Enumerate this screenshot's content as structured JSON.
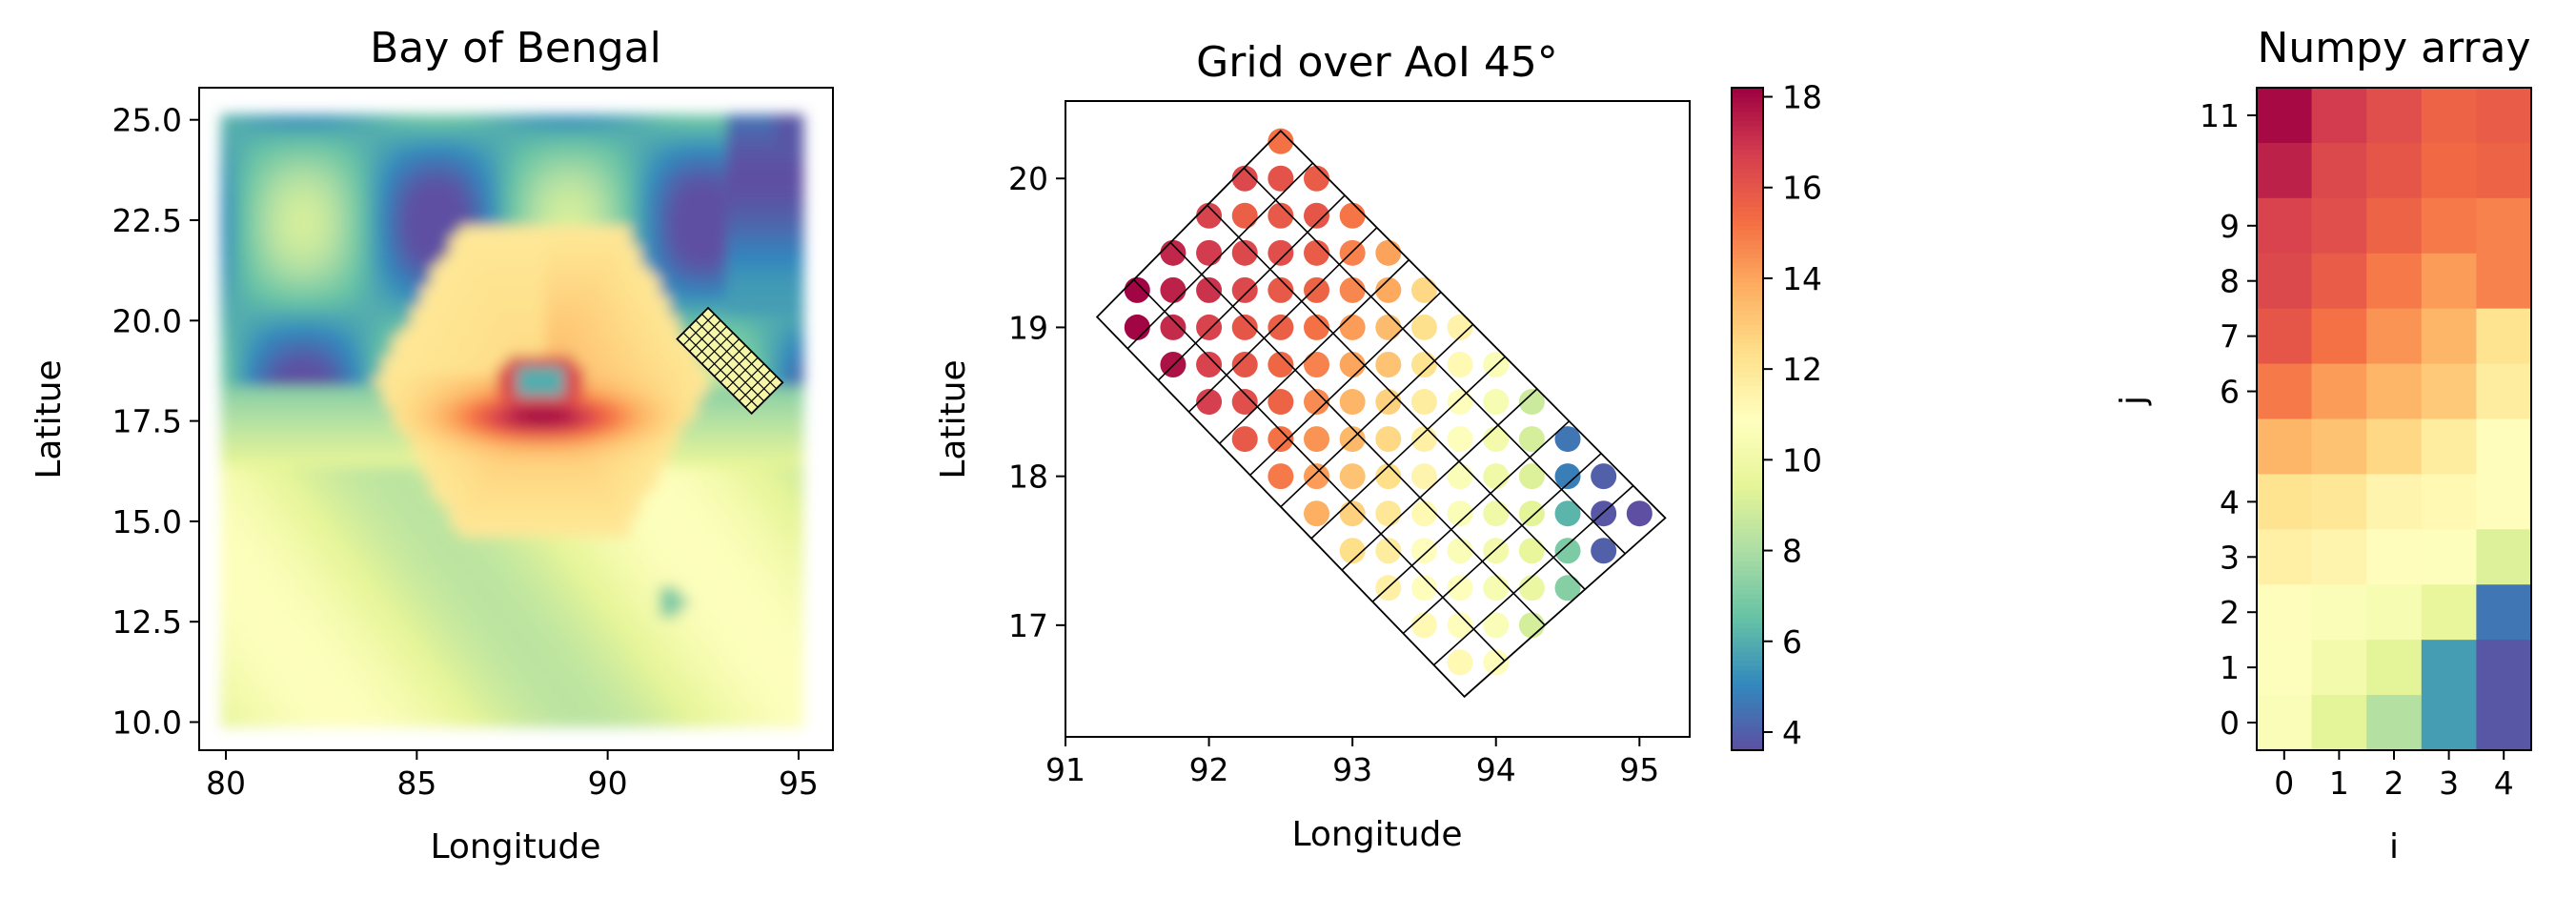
{
  "chart_data": [
    {
      "panel": "left",
      "type": "scatter",
      "title": "Bay of Bengal",
      "xlabel": "Longitude",
      "ylabel": "Latitue",
      "xlim": [
        79.3,
        95.9
      ],
      "ylim": [
        9.3,
        25.8
      ],
      "xticks": [
        "80",
        "85",
        "90",
        "95"
      ],
      "xtick_values": [
        80,
        85,
        90,
        95
      ],
      "yticks": [
        "10.0",
        "12.5",
        "15.0",
        "17.5",
        "20.0",
        "22.5",
        "25.0"
      ],
      "ytick_values": [
        10,
        12.5,
        15,
        17.5,
        20,
        22.5,
        25
      ],
      "field_extent": {
        "lon": [
          80,
          95
        ],
        "lat": [
          10,
          25
        ]
      },
      "field_description_values": {
        "eye_center": [
          88.3,
          18.5
        ],
        "hexagon_radius_deg": 4.4
      },
      "aoi_grid": {
        "center": [
          93.2,
          19.0
        ],
        "angle_deg": 45,
        "nx": 5,
        "ny": 12
      },
      "colormap": "Spectral_r"
    },
    {
      "panel": "middle",
      "type": "scatter",
      "title": "Grid over AoI 45°",
      "xlabel": "Longitude",
      "ylabel": "Latitue",
      "xlim": [
        91.0,
        95.35
      ],
      "ylim": [
        16.25,
        20.52
      ],
      "xticks": [
        "91",
        "92",
        "93",
        "94",
        "95"
      ],
      "xtick_values": [
        91,
        92,
        93,
        94,
        95
      ],
      "yticks": [
        "17",
        "18",
        "19",
        "20"
      ],
      "ytick_values": [
        17,
        18,
        19,
        20
      ],
      "grid_polygon": [
        [
          92.5,
          20.32
        ],
        [
          91.22,
          19.07
        ],
        [
          93.78,
          16.52
        ],
        [
          95.18,
          17.72
        ]
      ],
      "grid_rows": 12,
      "grid_cols": 5,
      "points": [
        {
          "x": 92.5,
          "y": 20.25,
          "v": 15.2
        },
        {
          "x": 92.25,
          "y": 20.0,
          "v": 16.4
        },
        {
          "x": 92.5,
          "y": 20.0,
          "v": 16.1
        },
        {
          "x": 92.75,
          "y": 20.0,
          "v": 15.8
        },
        {
          "x": 92.0,
          "y": 19.75,
          "v": 16.6
        },
        {
          "x": 92.25,
          "y": 19.75,
          "v": 15.7
        },
        {
          "x": 92.5,
          "y": 19.75,
          "v": 15.9
        },
        {
          "x": 92.75,
          "y": 19.75,
          "v": 16.0
        },
        {
          "x": 93.0,
          "y": 19.75,
          "v": 15.1
        },
        {
          "x": 91.75,
          "y": 19.5,
          "v": 17.3
        },
        {
          "x": 92.0,
          "y": 19.5,
          "v": 16.8
        },
        {
          "x": 92.25,
          "y": 19.5,
          "v": 16.4
        },
        {
          "x": 92.5,
          "y": 19.5,
          "v": 16.2
        },
        {
          "x": 92.75,
          "y": 19.5,
          "v": 15.8
        },
        {
          "x": 93.0,
          "y": 19.5,
          "v": 14.8
        },
        {
          "x": 93.25,
          "y": 19.5,
          "v": 14.1
        },
        {
          "x": 91.5,
          "y": 19.25,
          "v": 18.1
        },
        {
          "x": 91.75,
          "y": 19.25,
          "v": 17.4
        },
        {
          "x": 92.0,
          "y": 19.25,
          "v": 17.0
        },
        {
          "x": 92.25,
          "y": 19.25,
          "v": 16.4
        },
        {
          "x": 92.5,
          "y": 19.25,
          "v": 15.9
        },
        {
          "x": 92.75,
          "y": 19.25,
          "v": 15.6
        },
        {
          "x": 93.0,
          "y": 19.25,
          "v": 14.7
        },
        {
          "x": 93.25,
          "y": 19.25,
          "v": 13.9
        },
        {
          "x": 93.5,
          "y": 19.25,
          "v": 12.6
        },
        {
          "x": 91.5,
          "y": 19.0,
          "v": 18.1
        },
        {
          "x": 91.75,
          "y": 19.0,
          "v": 17.2
        },
        {
          "x": 92.0,
          "y": 19.0,
          "v": 16.6
        },
        {
          "x": 92.25,
          "y": 19.0,
          "v": 16.0
        },
        {
          "x": 92.5,
          "y": 19.0,
          "v": 15.7
        },
        {
          "x": 92.75,
          "y": 19.0,
          "v": 15.2
        },
        {
          "x": 93.0,
          "y": 19.0,
          "v": 14.2
        },
        {
          "x": 93.25,
          "y": 19.0,
          "v": 13.4
        },
        {
          "x": 93.5,
          "y": 19.0,
          "v": 12.3
        },
        {
          "x": 93.75,
          "y": 19.0,
          "v": 11.5
        },
        {
          "x": 91.75,
          "y": 18.75,
          "v": 17.8
        },
        {
          "x": 92.0,
          "y": 18.75,
          "v": 16.6
        },
        {
          "x": 92.25,
          "y": 18.75,
          "v": 16.0
        },
        {
          "x": 92.5,
          "y": 18.75,
          "v": 15.5
        },
        {
          "x": 92.75,
          "y": 18.75,
          "v": 14.8
        },
        {
          "x": 93.0,
          "y": 18.75,
          "v": 14.0
        },
        {
          "x": 93.25,
          "y": 18.75,
          "v": 13.2
        },
        {
          "x": 93.5,
          "y": 18.75,
          "v": 12.2
        },
        {
          "x": 93.75,
          "y": 18.75,
          "v": 11.2
        },
        {
          "x": 94.0,
          "y": 18.75,
          "v": 10.6
        },
        {
          "x": 92.0,
          "y": 18.5,
          "v": 16.7
        },
        {
          "x": 92.25,
          "y": 18.5,
          "v": 16.2
        },
        {
          "x": 92.5,
          "y": 18.5,
          "v": 15.6
        },
        {
          "x": 92.75,
          "y": 18.5,
          "v": 14.6
        },
        {
          "x": 93.0,
          "y": 18.5,
          "v": 13.6
        },
        {
          "x": 93.25,
          "y": 18.5,
          "v": 12.8
        },
        {
          "x": 93.5,
          "y": 18.5,
          "v": 11.8
        },
        {
          "x": 93.75,
          "y": 18.5,
          "v": 11.0
        },
        {
          "x": 94.0,
          "y": 18.5,
          "v": 10.4
        },
        {
          "x": 94.25,
          "y": 18.5,
          "v": 8.8
        },
        {
          "x": 92.25,
          "y": 18.25,
          "v": 15.9
        },
        {
          "x": 92.5,
          "y": 18.25,
          "v": 15.2
        },
        {
          "x": 92.75,
          "y": 18.25,
          "v": 14.4
        },
        {
          "x": 93.0,
          "y": 18.25,
          "v": 13.5
        },
        {
          "x": 93.25,
          "y": 18.25,
          "v": 12.6
        },
        {
          "x": 93.5,
          "y": 18.25,
          "v": 11.6
        },
        {
          "x": 93.75,
          "y": 18.25,
          "v": 10.8
        },
        {
          "x": 94.0,
          "y": 18.25,
          "v": 10.2
        },
        {
          "x": 94.25,
          "y": 18.25,
          "v": 9.0
        },
        {
          "x": 94.5,
          "y": 18.25,
          "v": 4.6
        },
        {
          "x": 92.5,
          "y": 18.0,
          "v": 15.0
        },
        {
          "x": 92.75,
          "y": 18.0,
          "v": 14.2
        },
        {
          "x": 93.0,
          "y": 18.0,
          "v": 13.2
        },
        {
          "x": 93.25,
          "y": 18.0,
          "v": 12.4
        },
        {
          "x": 93.5,
          "y": 18.0,
          "v": 11.4
        },
        {
          "x": 93.75,
          "y": 18.0,
          "v": 10.6
        },
        {
          "x": 94.0,
          "y": 18.0,
          "v": 10.0
        },
        {
          "x": 94.25,
          "y": 18.0,
          "v": 9.2
        },
        {
          "x": 94.5,
          "y": 18.0,
          "v": 4.8
        },
        {
          "x": 94.75,
          "y": 18.0,
          "v": 4.0
        },
        {
          "x": 92.75,
          "y": 17.75,
          "v": 13.8
        },
        {
          "x": 93.0,
          "y": 17.75,
          "v": 12.8
        },
        {
          "x": 93.25,
          "y": 17.75,
          "v": 12.0
        },
        {
          "x": 93.5,
          "y": 17.75,
          "v": 11.2
        },
        {
          "x": 93.75,
          "y": 17.75,
          "v": 10.6
        },
        {
          "x": 94.0,
          "y": 17.75,
          "v": 10.0
        },
        {
          "x": 94.25,
          "y": 17.75,
          "v": 9.4
        },
        {
          "x": 94.5,
          "y": 17.75,
          "v": 6.2
        },
        {
          "x": 94.75,
          "y": 17.75,
          "v": 3.8
        },
        {
          "x": 95.0,
          "y": 17.75,
          "v": 3.6
        },
        {
          "x": 93.0,
          "y": 17.5,
          "v": 12.4
        },
        {
          "x": 93.25,
          "y": 17.5,
          "v": 11.8
        },
        {
          "x": 93.5,
          "y": 17.5,
          "v": 11.0
        },
        {
          "x": 93.75,
          "y": 17.5,
          "v": 10.6
        },
        {
          "x": 94.0,
          "y": 17.5,
          "v": 10.2
        },
        {
          "x": 94.25,
          "y": 17.5,
          "v": 9.6
        },
        {
          "x": 94.5,
          "y": 17.5,
          "v": 7.0
        },
        {
          "x": 94.75,
          "y": 17.5,
          "v": 4.0
        },
        {
          "x": 93.25,
          "y": 17.25,
          "v": 11.6
        },
        {
          "x": 93.5,
          "y": 17.25,
          "v": 11.0
        },
        {
          "x": 93.75,
          "y": 17.25,
          "v": 10.8
        },
        {
          "x": 94.0,
          "y": 17.25,
          "v": 10.4
        },
        {
          "x": 94.25,
          "y": 17.25,
          "v": 9.8
        },
        {
          "x": 94.5,
          "y": 17.25,
          "v": 7.2
        },
        {
          "x": 93.5,
          "y": 17.0,
          "v": 11.2
        },
        {
          "x": 93.75,
          "y": 17.0,
          "v": 11.0
        },
        {
          "x": 94.0,
          "y": 17.0,
          "v": 10.6
        },
        {
          "x": 94.25,
          "y": 17.0,
          "v": 9.0
        },
        {
          "x": 93.75,
          "y": 16.75,
          "v": 11.2
        },
        {
          "x": 94.0,
          "y": 16.75,
          "v": 11.0
        }
      ],
      "colorbar": {
        "range": [
          3.6,
          18.2
        ],
        "ticks": [
          "4",
          "6",
          "8",
          "10",
          "12",
          "14",
          "16",
          "18"
        ],
        "tick_values": [
          4,
          6,
          8,
          10,
          12,
          14,
          16,
          18
        ]
      },
      "colormap": "Spectral_r"
    },
    {
      "panel": "right",
      "type": "heatmap",
      "title": "Numpy array",
      "xlabel": "i",
      "ylabel": "j",
      "xticks": [
        "0",
        "1",
        "2",
        "3",
        "4"
      ],
      "yticks": [
        "0",
        "1",
        "2",
        "3",
        "4",
        "6",
        "7",
        "8",
        "9",
        "11"
      ],
      "ytick_rows": [
        0,
        1,
        2,
        3,
        4,
        6,
        7,
        8,
        9,
        11
      ],
      "rows_top_to_bottom": [
        [
          18.0,
          16.8,
          16.2,
          15.6,
          15.8
        ],
        [
          17.4,
          16.4,
          16.0,
          15.4,
          15.6
        ],
        [
          16.6,
          16.2,
          15.6,
          15.0,
          14.8
        ],
        [
          16.4,
          15.8,
          15.0,
          14.2,
          14.8
        ],
        [
          16.0,
          15.2,
          14.4,
          13.6,
          12.2
        ],
        [
          15.0,
          14.2,
          13.6,
          13.0,
          11.8
        ],
        [
          13.6,
          13.2,
          12.6,
          11.8,
          11.0
        ],
        [
          12.2,
          12.0,
          11.4,
          11.2,
          11.0
        ],
        [
          11.6,
          11.4,
          11.0,
          10.8,
          9.2
        ],
        [
          11.0,
          10.6,
          10.4,
          9.6,
          4.6
        ],
        [
          10.8,
          10.2,
          9.4,
          5.6,
          3.8
        ],
        [
          10.6,
          9.4,
          8.2,
          5.6,
          3.8
        ]
      ],
      "value_range": [
        3.6,
        18.2
      ],
      "colormap": "Spectral_r"
    }
  ]
}
